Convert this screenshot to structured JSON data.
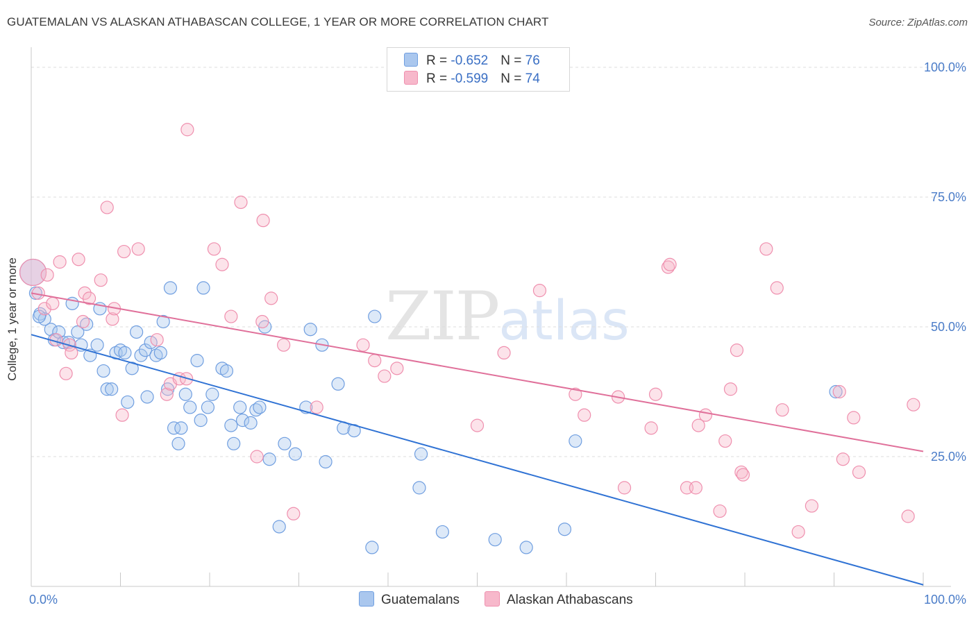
{
  "header": {
    "title": "GUATEMALAN VS ALASKAN ATHABASCAN COLLEGE, 1 YEAR OR MORE CORRELATION CHART",
    "source": "Source: ZipAtlas.com"
  },
  "watermark": {
    "zip": "ZIP",
    "atlas": "atlas"
  },
  "legend": {
    "rows": [
      {
        "r_label": "R = ",
        "r_value": "-0.652",
        "n_label": "N = ",
        "n_value": "76",
        "color": "#aac7ee"
      },
      {
        "r_label": "R = ",
        "r_value": "-0.599",
        "n_label": "N = ",
        "n_value": "74",
        "color": "#f7b8cb"
      }
    ]
  },
  "bottom_legend": {
    "items": [
      {
        "label": "Guatemalans",
        "color": "#aac7ee"
      },
      {
        "label": "Alaskan Athabascans",
        "color": "#f7b8cb"
      }
    ]
  },
  "chart_data": {
    "type": "scatter",
    "title": "GUATEMALAN VS ALASKAN ATHABASCAN COLLEGE, 1 YEAR OR MORE CORRELATION CHART",
    "xlabel": "",
    "ylabel": "College, 1 year or more",
    "xlim": [
      0,
      100
    ],
    "ylim": [
      0,
      100
    ],
    "x_tick_labels": [
      "0.0%",
      "100.0%"
    ],
    "y_ticks": [
      25,
      50,
      75,
      100
    ],
    "y_tick_labels": [
      "25.0%",
      "50.0%",
      "75.0%",
      "100.0%"
    ],
    "grid": true,
    "legend_position": "top-center",
    "series": [
      {
        "name": "Guatemalans",
        "color": "#6f9ee0",
        "fill": "#aac7ee",
        "line_color": "#2f72d4",
        "trend": [
          [
            0,
            48.5
          ],
          [
            100,
            0.3
          ]
        ],
        "points": [
          [
            0.2,
            60.5
          ],
          [
            0.5,
            56.5
          ],
          [
            1.0,
            52.5
          ],
          [
            1.5,
            51.5
          ],
          [
            2.2,
            49.5
          ],
          [
            2.6,
            47.5
          ],
          [
            3.1,
            49.0
          ],
          [
            3.6,
            47.0
          ],
          [
            4.2,
            47.0
          ],
          [
            4.6,
            54.5
          ],
          [
            5.2,
            49.0
          ],
          [
            5.6,
            46.5
          ],
          [
            6.2,
            50.5
          ],
          [
            6.6,
            44.5
          ],
          [
            7.4,
            46.5
          ],
          [
            7.7,
            53.5
          ],
          [
            8.1,
            41.5
          ],
          [
            8.5,
            38.0
          ],
          [
            9.0,
            38.0
          ],
          [
            9.5,
            45.0
          ],
          [
            10.0,
            45.5
          ],
          [
            10.5,
            45.0
          ],
          [
            10.8,
            35.5
          ],
          [
            11.3,
            42.0
          ],
          [
            11.8,
            49.0
          ],
          [
            12.3,
            44.5
          ],
          [
            12.8,
            45.5
          ],
          [
            13.0,
            36.5
          ],
          [
            13.4,
            47.0
          ],
          [
            14.0,
            44.5
          ],
          [
            14.5,
            45.0
          ],
          [
            14.8,
            51.0
          ],
          [
            15.3,
            38.0
          ],
          [
            15.6,
            57.5
          ],
          [
            16.0,
            30.5
          ],
          [
            16.5,
            27.5
          ],
          [
            16.8,
            30.5
          ],
          [
            17.3,
            37.0
          ],
          [
            17.8,
            34.5
          ],
          [
            18.6,
            43.5
          ],
          [
            19.0,
            32.0
          ],
          [
            19.3,
            57.5
          ],
          [
            19.8,
            34.5
          ],
          [
            20.3,
            37.0
          ],
          [
            21.4,
            42.0
          ],
          [
            21.9,
            41.5
          ],
          [
            22.4,
            31.0
          ],
          [
            22.7,
            27.5
          ],
          [
            23.4,
            34.5
          ],
          [
            23.7,
            32.0
          ],
          [
            24.6,
            31.5
          ],
          [
            25.2,
            34.0
          ],
          [
            25.6,
            34.5
          ],
          [
            26.2,
            50.0
          ],
          [
            26.7,
            24.5
          ],
          [
            27.8,
            11.5
          ],
          [
            28.4,
            27.5
          ],
          [
            29.6,
            25.5
          ],
          [
            30.8,
            34.5
          ],
          [
            31.3,
            49.5
          ],
          [
            32.6,
            46.5
          ],
          [
            33.0,
            24.0
          ],
          [
            34.4,
            39.0
          ],
          [
            35.0,
            30.5
          ],
          [
            36.2,
            30.0
          ],
          [
            38.2,
            7.5
          ],
          [
            38.5,
            52.0
          ],
          [
            43.7,
            25.5
          ],
          [
            43.5,
            19.0
          ],
          [
            46.1,
            10.5
          ],
          [
            52.0,
            9.0
          ],
          [
            55.5,
            7.5
          ],
          [
            59.8,
            11.0
          ],
          [
            61.0,
            28.0
          ],
          [
            90.2,
            37.5
          ],
          [
            0.9,
            52.0
          ]
        ]
      },
      {
        "name": "Alaskan Athabascans",
        "color": "#ef8fae",
        "fill": "#f7b8cb",
        "line_color": "#e0709a",
        "trend": [
          [
            0,
            56.5
          ],
          [
            100,
            26.0
          ]
        ],
        "points": [
          [
            0.2,
            60.5
          ],
          [
            0.8,
            56.5
          ],
          [
            1.5,
            53.5
          ],
          [
            1.8,
            60.0
          ],
          [
            2.4,
            54.5
          ],
          [
            2.8,
            47.5
          ],
          [
            3.2,
            62.5
          ],
          [
            3.9,
            41.0
          ],
          [
            4.3,
            46.5
          ],
          [
            4.5,
            45.0
          ],
          [
            5.3,
            63.0
          ],
          [
            5.8,
            51.0
          ],
          [
            6.0,
            56.5
          ],
          [
            6.5,
            55.5
          ],
          [
            7.8,
            59.0
          ],
          [
            8.5,
            73.0
          ],
          [
            9.1,
            51.5
          ],
          [
            9.3,
            53.5
          ],
          [
            10.2,
            33.0
          ],
          [
            10.4,
            64.5
          ],
          [
            12.0,
            65.0
          ],
          [
            14.1,
            47.5
          ],
          [
            15.2,
            37.0
          ],
          [
            15.6,
            39.0
          ],
          [
            16.6,
            40.0
          ],
          [
            17.4,
            40.0
          ],
          [
            17.5,
            88.0
          ],
          [
            20.5,
            65.0
          ],
          [
            21.4,
            62.0
          ],
          [
            22.4,
            52.0
          ],
          [
            23.5,
            74.0
          ],
          [
            25.3,
            25.0
          ],
          [
            25.9,
            51.0
          ],
          [
            26.0,
            70.5
          ],
          [
            26.9,
            55.5
          ],
          [
            28.3,
            46.5
          ],
          [
            29.4,
            14.0
          ],
          [
            32.0,
            34.5
          ],
          [
            37.2,
            46.5
          ],
          [
            38.5,
            43.5
          ],
          [
            39.6,
            40.5
          ],
          [
            41.0,
            42.0
          ],
          [
            50.0,
            31.0
          ],
          [
            53.0,
            45.0
          ],
          [
            57.0,
            57.0
          ],
          [
            61.0,
            37.0
          ],
          [
            62.0,
            33.0
          ],
          [
            65.8,
            36.5
          ],
          [
            66.5,
            19.0
          ],
          [
            69.5,
            30.5
          ],
          [
            70.0,
            37.0
          ],
          [
            71.4,
            61.5
          ],
          [
            71.6,
            62.0
          ],
          [
            73.5,
            19.0
          ],
          [
            74.5,
            19.0
          ],
          [
            74.8,
            31.0
          ],
          [
            75.6,
            33.0
          ],
          [
            77.2,
            14.5
          ],
          [
            77.8,
            28.0
          ],
          [
            78.4,
            38.0
          ],
          [
            79.1,
            45.5
          ],
          [
            79.6,
            22.0
          ],
          [
            79.8,
            21.5
          ],
          [
            82.4,
            65.0
          ],
          [
            83.6,
            57.5
          ],
          [
            84.2,
            34.0
          ],
          [
            86.0,
            10.5
          ],
          [
            87.5,
            15.5
          ],
          [
            90.6,
            37.5
          ],
          [
            91.0,
            24.5
          ],
          [
            92.2,
            32.5
          ],
          [
            92.8,
            22.0
          ],
          [
            98.3,
            13.5
          ],
          [
            98.9,
            35.0
          ]
        ]
      }
    ]
  }
}
